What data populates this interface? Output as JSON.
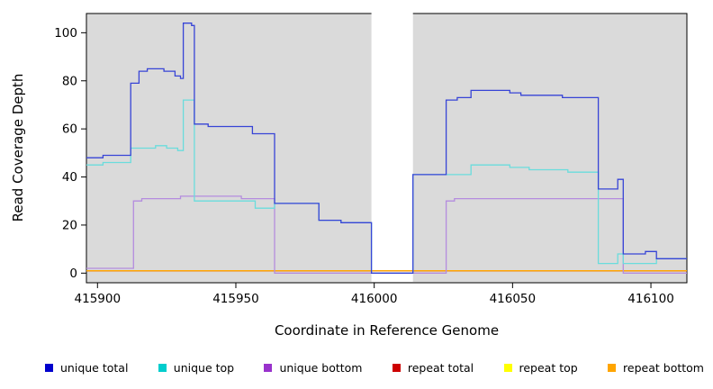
{
  "chart_data": {
    "type": "line",
    "title": "",
    "xlabel": "Coordinate in Reference Genome",
    "ylabel": "Read Coverage Depth",
    "xlim": [
      415896,
      416113
    ],
    "ylim": [
      -4,
      108
    ],
    "xticks": [
      415900,
      415950,
      416000,
      416050,
      416100
    ],
    "yticks": [
      0,
      20,
      40,
      60,
      80,
      100
    ],
    "plot_background": "#DADADA",
    "gap_region": [
      415999,
      416014
    ],
    "grid": false,
    "legend_position": "bottom",
    "series": [
      {
        "name": "repeat top",
        "slug": "repeat-top",
        "color": "#FFFF00",
        "points": [
          [
            415896,
            1
          ],
          [
            416113,
            1
          ]
        ]
      },
      {
        "name": "repeat total",
        "slug": "repeat-total",
        "color": "#CD0000",
        "points": [
          [
            415896,
            1
          ],
          [
            416113,
            1
          ]
        ]
      },
      {
        "name": "repeat bottom",
        "slug": "repeat-bottom",
        "color": "#FFA500",
        "points": [
          [
            415896,
            1
          ],
          [
            416113,
            1
          ]
        ]
      },
      {
        "name": "unique bottom",
        "slug": "unique-bottom",
        "color": "#B48CDE",
        "points": [
          [
            415896,
            2
          ],
          [
            415913,
            30
          ],
          [
            415916,
            31
          ],
          [
            415930,
            32
          ],
          [
            415952,
            31
          ],
          [
            415964,
            0
          ],
          [
            416026,
            30
          ],
          [
            416029,
            31
          ],
          [
            416090,
            0
          ],
          [
            416113,
            0
          ]
        ]
      },
      {
        "name": "unique top",
        "slug": "unique-top",
        "color": "#6ADCDC",
        "points": [
          [
            415896,
            45
          ],
          [
            415902,
            46
          ],
          [
            415912,
            52
          ],
          [
            415921,
            53
          ],
          [
            415925,
            52
          ],
          [
            415929,
            51
          ],
          [
            415931,
            72
          ],
          [
            415935,
            30
          ],
          [
            415957,
            27
          ],
          [
            415964,
            29
          ],
          [
            415980,
            22
          ],
          [
            415988,
            21
          ],
          [
            415999,
            0
          ],
          [
            416014,
            41
          ],
          [
            416035,
            45
          ],
          [
            416049,
            44
          ],
          [
            416056,
            43
          ],
          [
            416070,
            42
          ],
          [
            416081,
            4
          ],
          [
            416088,
            8
          ],
          [
            416090,
            4
          ],
          [
            416098,
            4
          ],
          [
            416102,
            6
          ],
          [
            416113,
            6
          ]
        ]
      },
      {
        "name": "unique total",
        "slug": "unique-total",
        "color": "#3744D6",
        "points": [
          [
            415896,
            48
          ],
          [
            415902,
            49
          ],
          [
            415912,
            79
          ],
          [
            415915,
            84
          ],
          [
            415918,
            85
          ],
          [
            415924,
            84
          ],
          [
            415928,
            82
          ],
          [
            415930,
            81
          ],
          [
            415931,
            104
          ],
          [
            415934,
            103
          ],
          [
            415935,
            62
          ],
          [
            415940,
            61
          ],
          [
            415956,
            58
          ],
          [
            415964,
            29
          ],
          [
            415980,
            22
          ],
          [
            415988,
            21
          ],
          [
            415999,
            0
          ],
          [
            416014,
            41
          ],
          [
            416026,
            72
          ],
          [
            416030,
            73
          ],
          [
            416035,
            76
          ],
          [
            416049,
            75
          ],
          [
            416053,
            74
          ],
          [
            416068,
            73
          ],
          [
            416081,
            35
          ],
          [
            416088,
            39
          ],
          [
            416090,
            8
          ],
          [
            416098,
            9
          ],
          [
            416102,
            6
          ],
          [
            416113,
            6
          ]
        ]
      }
    ],
    "legend": [
      {
        "label": "unique total",
        "color": "#0000CD"
      },
      {
        "label": "unique top",
        "color": "#00CDCD"
      },
      {
        "label": "unique bottom",
        "color": "#9932CC"
      },
      {
        "label": "repeat total",
        "color": "#CD0000"
      },
      {
        "label": "repeat top",
        "color": "#FFFF00"
      },
      {
        "label": "repeat bottom",
        "color": "#FFA500"
      }
    ]
  }
}
